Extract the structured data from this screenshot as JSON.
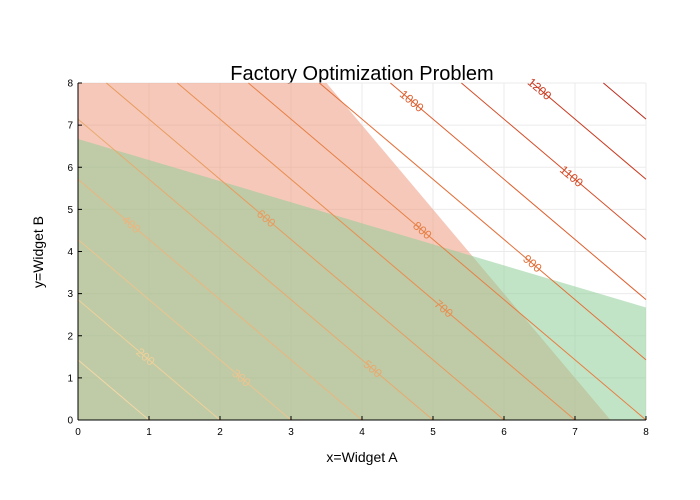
{
  "chart_data": {
    "type": "area",
    "title": "Factory Optimization Problem",
    "xlabel": "x=Widget A",
    "ylabel": "y=Widget B",
    "xlim": [
      0,
      8
    ],
    "ylim": [
      0,
      8
    ],
    "x_ticks": [
      "0",
      "1",
      "2",
      "3",
      "4",
      "5",
      "6",
      "7",
      "8"
    ],
    "y_ticks": [
      "0",
      "1",
      "2",
      "3",
      "4",
      "5",
      "6",
      "7",
      "8"
    ],
    "grid": true,
    "regions": [
      {
        "color": "#ef9a80",
        "opacity": 0.55,
        "points": [
          [
            0,
            0
          ],
          [
            0,
            8
          ],
          [
            3.5,
            8
          ],
          [
            7.5,
            0
          ]
        ]
      },
      {
        "color": "#8fcd98",
        "opacity": 0.55,
        "points": [
          [
            0,
            0
          ],
          [
            0,
            6.67
          ],
          [
            8,
            2.67
          ],
          [
            8,
            0
          ]
        ]
      }
    ],
    "contours": [
      {
        "level": 100,
        "label": "",
        "color": "#f4d7a6"
      },
      {
        "level": 200,
        "label": "200",
        "color": "#efd09a"
      },
      {
        "level": 300,
        "label": "300",
        "color": "#ecc490"
      },
      {
        "level": 400,
        "label": "400",
        "color": "#e9b680"
      },
      {
        "level": 500,
        "label": "500",
        "color": "#e8aa70"
      },
      {
        "level": 600,
        "label": "600",
        "color": "#e89c60"
      },
      {
        "level": 700,
        "label": "700",
        "color": "#e88f52"
      },
      {
        "level": 800,
        "label": "800",
        "color": "#e67f45"
      },
      {
        "level": 900,
        "label": "900",
        "color": "#e2703a"
      },
      {
        "level": 1000,
        "label": "1000",
        "color": "#dd6030"
      },
      {
        "level": 1100,
        "label": "1100",
        "color": "#d44c27"
      },
      {
        "level": 1200,
        "label": "1200",
        "color": "#c93a20"
      },
      {
        "level": 1300,
        "label": "",
        "color": "#bd2a1a"
      },
      {
        "level": 1400,
        "label": "",
        "color": "#b01c16"
      }
    ],
    "contour_function": {
      "x_coef": 100,
      "y_coef": 70
    }
  }
}
